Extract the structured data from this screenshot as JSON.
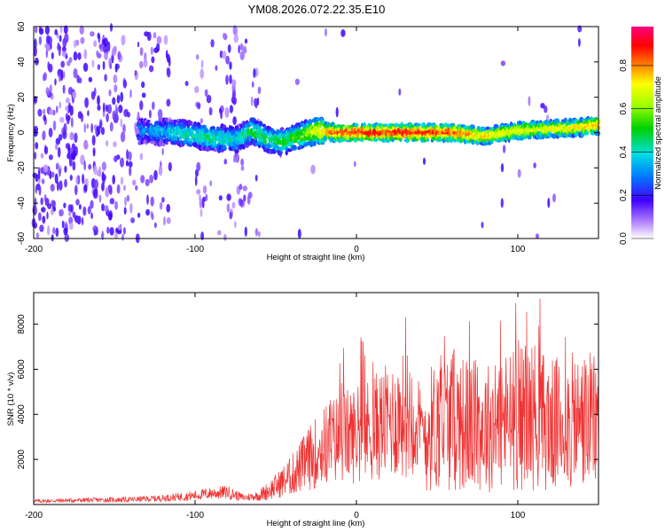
{
  "chart_data": [
    {
      "type": "heatmap",
      "title": "YM08.2026.072.22.35.E10",
      "xlabel": "Height of straight line (km)",
      "ylabel": "Frequency (Hz)",
      "xlim": [
        -200,
        150
      ],
      "ylim": [
        -60,
        60
      ],
      "xticks": [
        -200,
        -100,
        0,
        100
      ],
      "yticks": [
        -60,
        -40,
        -20,
        0,
        20,
        40,
        60
      ],
      "ridge": {
        "x": [
          -130,
          -110,
          -90,
          -75,
          -65,
          -55,
          -45,
          -35,
          -25,
          -15,
          0,
          20,
          40,
          60,
          80,
          100,
          120,
          140,
          150
        ],
        "frequency": [
          1,
          0,
          -3,
          -4,
          1,
          -4,
          -5,
          -2,
          1,
          0,
          0,
          0,
          0,
          0,
          -2,
          1,
          2,
          3,
          4
        ],
        "amplitude": [
          0.3,
          0.4,
          0.45,
          0.4,
          0.5,
          0.45,
          0.5,
          0.55,
          0.7,
          0.85,
          0.9,
          0.9,
          0.9,
          0.85,
          0.75,
          0.7,
          0.7,
          0.75,
          0.8
        ]
      },
      "colorbar": {
        "label": "Normalized spectral amplitude",
        "range": [
          0,
          0.98
        ],
        "ticks": [
          "0.0",
          "0.2",
          "0.4",
          "0.6",
          "0.8"
        ]
      }
    },
    {
      "type": "line",
      "xlabel": "Height of straight line (km)",
      "ylabel": "SNR (10 * v/v)",
      "xlim": [
        -200,
        150
      ],
      "ylim": [
        0,
        9400
      ],
      "xticks": [
        -200,
        -100,
        0,
        100
      ],
      "yticks": [
        2000,
        4000,
        6000,
        8000
      ],
      "color": "#ee3333",
      "series": [
        {
          "name": "SNR",
          "x": [
            -200,
            -180,
            -160,
            -140,
            -120,
            -100,
            -90,
            -80,
            -70,
            -60,
            -50,
            -40,
            -30,
            -20,
            -10,
            0,
            10,
            20,
            30,
            35,
            40,
            50,
            60,
            70,
            80,
            90,
            100,
            110,
            120,
            130,
            140,
            150
          ],
          "y": [
            150,
            180,
            200,
            220,
            280,
            400,
            500,
            550,
            300,
            400,
            800,
            1300,
            2000,
            2600,
            3000,
            3100,
            3400,
            3700,
            4000,
            4200,
            3000,
            3600,
            3800,
            3500,
            3400,
            3700,
            3800,
            4000,
            3500,
            3600,
            3700,
            3600
          ]
        }
      ]
    }
  ]
}
